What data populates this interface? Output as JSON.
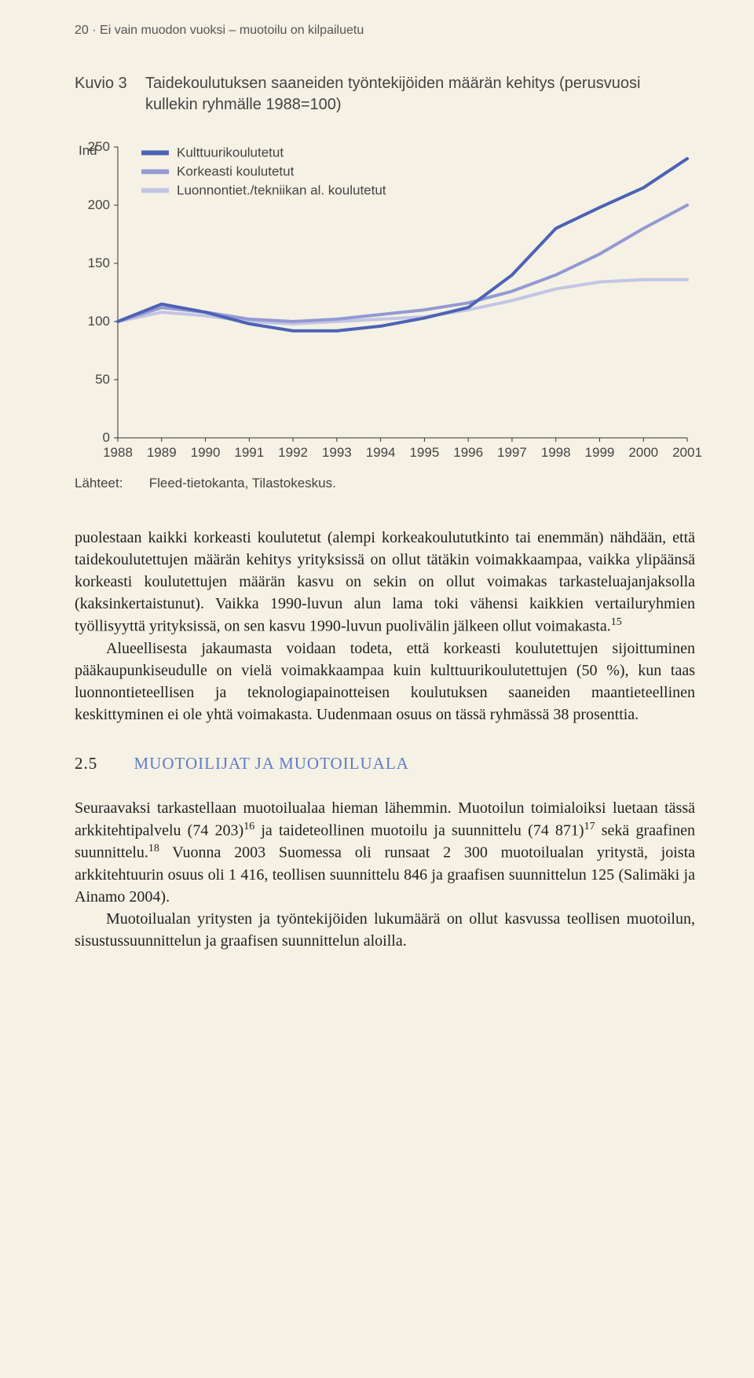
{
  "page_header": "20 · Ei vain muodon vuoksi – muotoilu on kilpailuetu",
  "figure": {
    "number": "Kuvio 3",
    "title": "Taidekoulutuksen saaneiden työntekijöiden määrän kehitys (perusvuosi kullekin ryhmälle 1988=100)"
  },
  "chart": {
    "type": "line",
    "y_axis_label": "Ind",
    "ylim": [
      0,
      250
    ],
    "ytick_step": 50,
    "yticks": [
      "0",
      "50",
      "100",
      "150",
      "200",
      "250"
    ],
    "x_categories": [
      "1988",
      "1989",
      "1990",
      "1991",
      "1992",
      "1993",
      "1994",
      "1995",
      "1996",
      "1997",
      "1998",
      "1999",
      "2000",
      "2001"
    ],
    "background_color": "#f5f1e4",
    "axis_color": "#333333",
    "tick_font_size": 17,
    "line_width": 4,
    "series": [
      {
        "name": "Kulttuurikoulutetut",
        "color": "#4c62b5",
        "values": [
          100,
          115,
          108,
          98,
          92,
          92,
          96,
          103,
          112,
          140,
          180,
          198,
          215,
          240
        ]
      },
      {
        "name": "Korkeasti koulutetut",
        "color": "#9499d4",
        "values": [
          100,
          112,
          108,
          102,
          100,
          102,
          106,
          110,
          116,
          126,
          140,
          158,
          180,
          200
        ]
      },
      {
        "name": "Luonnontiet./tekniikan al. koulutetut",
        "color": "#c2c5e4",
        "values": [
          100,
          108,
          105,
          100,
          98,
          100,
          102,
          104,
          110,
          118,
          128,
          134,
          136,
          136
        ]
      }
    ]
  },
  "source": {
    "label": "Lähteet:",
    "text": "Fleed-tietokanta, Tilastokeskus."
  },
  "paragraphs": {
    "p1": "puolestaan kaikki korkeasti koulutetut (alempi korkeakoulututkinto tai enemmän) nähdään, että taidekoulutettujen määrän kehitys yrityksissä on ollut tätäkin voimakkaampaa, vaikka ylipäänsä korkeasti koulutettujen määrän kasvu on sekin on ollut voimakas tarkasteluajanjaksolla (kaksinkertaistunut). Vaikka 1990-luvun alun lama toki vähensi kaikkien vertailuryhmien työllisyyttä yrityksissä, on sen kasvu 1990-luvun puolivälin jälkeen ollut voimakasta.",
    "p1_sup": "15",
    "p2": "Alueellisesta jakaumasta voidaan todeta, että korkeasti koulutettujen sijoittuminen pääkaupunkiseudulle on vielä voimakkaampaa kuin kulttuurikoulutettujen (50 %), kun taas luonnontieteellisen ja teknologiapainotteisen koulutuksen saaneiden maantieteellinen keskittyminen ei ole yhtä voimakasta. Uudenmaan osuus on tässä ryhmässä 38 prosenttia.",
    "p3a": "Seuraavaksi tarkastellaan muotoilualaa hieman lähemmin. Muotoilun toimialoiksi luetaan tässä arkkitehtipalvelu (74 203)",
    "p3_sup1": "16",
    "p3b": " ja taideteollinen muotoilu ja suunnittelu (74 871)",
    "p3_sup2": "17",
    "p3c": " sekä graafinen suunnittelu.",
    "p3_sup3": "18",
    "p3d": " Vuonna 2003 Suomessa oli runsaat 2 300 muotoilualan yritystä, joista arkkitehtuurin osuus oli 1 416, teollisen suunnittelu 846 ja graafisen suunnittelun 125 (Salimäki ja Ainamo 2004).",
    "p4": "Muotoilualan yritysten ja työntekijöiden lukumäärä on ollut kasvussa teollisen muotoilun, sisustussuunnittelun ja graafisen suunnittelun aloilla."
  },
  "section": {
    "number": "2.5",
    "title": "MUOTOILIJAT JA MUOTOILUALA",
    "title_color": "#5f7bc4"
  }
}
